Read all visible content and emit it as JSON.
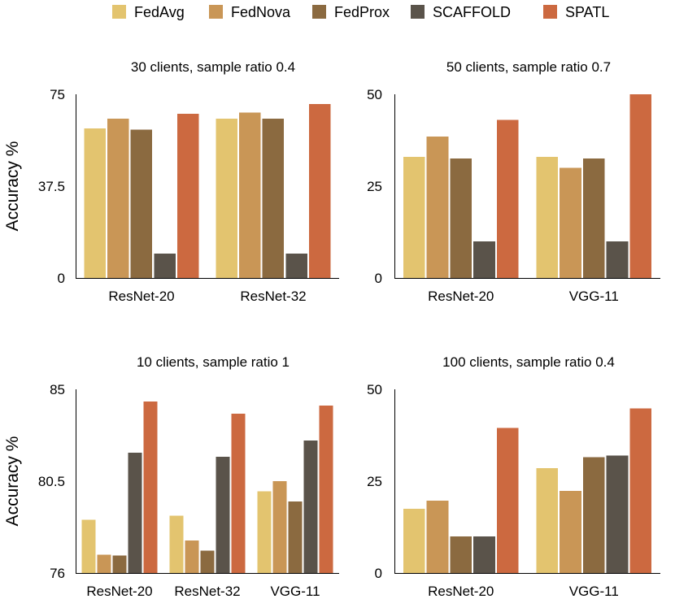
{
  "series_colors": {
    "FedAvg": "#E3C46F",
    "FedNova": "#C99656",
    "FedProx": "#8B6A40",
    "SCAFFOLD": "#5A534A",
    "SPATL": "#CC6940"
  },
  "legend": [
    "FedAvg",
    "FedNova",
    "FedProx",
    "SCAFFOLD",
    "SPATL"
  ],
  "chart_data": [
    {
      "type": "bar",
      "title": "30 clients, sample ratio 0.4",
      "ylabel": "Accuracy %",
      "ylim": [
        0,
        75
      ],
      "yticks": [
        "0",
        "37.5",
        "75"
      ],
      "categories": [
        "ResNet-20",
        "ResNet-32"
      ],
      "series": [
        {
          "name": "FedAvg",
          "values": [
            61,
            65
          ]
        },
        {
          "name": "FedNova",
          "values": [
            65,
            67.5
          ]
        },
        {
          "name": "FedProx",
          "values": [
            60.5,
            65
          ]
        },
        {
          "name": "SCAFFOLD",
          "values": [
            10,
            10
          ]
        },
        {
          "name": "SPATL",
          "values": [
            67,
            71
          ]
        }
      ]
    },
    {
      "type": "bar",
      "title": "50 clients, sample ratio 0.7",
      "ylabel": "",
      "ylim": [
        0,
        50
      ],
      "yticks": [
        "0",
        "25",
        "50"
      ],
      "categories": [
        "ResNet-20",
        "VGG-11"
      ],
      "series": [
        {
          "name": "FedAvg",
          "values": [
            33,
            33
          ]
        },
        {
          "name": "FedNova",
          "values": [
            38.5,
            30
          ]
        },
        {
          "name": "FedProx",
          "values": [
            32.5,
            32.5
          ]
        },
        {
          "name": "SCAFFOLD",
          "values": [
            10,
            10
          ]
        },
        {
          "name": "SPATL",
          "values": [
            43,
            50
          ]
        }
      ]
    },
    {
      "type": "bar",
      "title": "10 clients, sample ratio 1",
      "ylabel": "Accuracy %",
      "ylim": [
        76,
        85
      ],
      "yticks": [
        "76",
        "80.5",
        "85"
      ],
      "categories": [
        "ResNet-20",
        "ResNet-32",
        "VGG-11"
      ],
      "series": [
        {
          "name": "FedAvg",
          "values": [
            78.6,
            78.8,
            80
          ]
        },
        {
          "name": "FedNova",
          "values": [
            76.9,
            77.6,
            80.5
          ]
        },
        {
          "name": "FedProx",
          "values": [
            76.85,
            77.1,
            79.5
          ]
        },
        {
          "name": "SCAFFOLD",
          "values": [
            81.9,
            81.7,
            82.5
          ]
        },
        {
          "name": "SPATL",
          "values": [
            84.4,
            83.8,
            84.2
          ]
        }
      ]
    },
    {
      "type": "bar",
      "title": "100 clients, sample ratio 0.4",
      "ylabel": "",
      "ylim": [
        0,
        50
      ],
      "yticks": [
        "0",
        "25",
        "50"
      ],
      "categories": [
        "ResNet-20",
        "VGG-11"
      ],
      "series": [
        {
          "name": "FedAvg",
          "values": [
            17.5,
            28.5
          ]
        },
        {
          "name": "FedNova",
          "values": [
            19.7,
            22.3
          ]
        },
        {
          "name": "FedProx",
          "values": [
            10,
            31.5
          ]
        },
        {
          "name": "SCAFFOLD",
          "values": [
            10,
            32
          ]
        },
        {
          "name": "SPATL",
          "values": [
            39.5,
            44.8
          ]
        }
      ]
    }
  ]
}
